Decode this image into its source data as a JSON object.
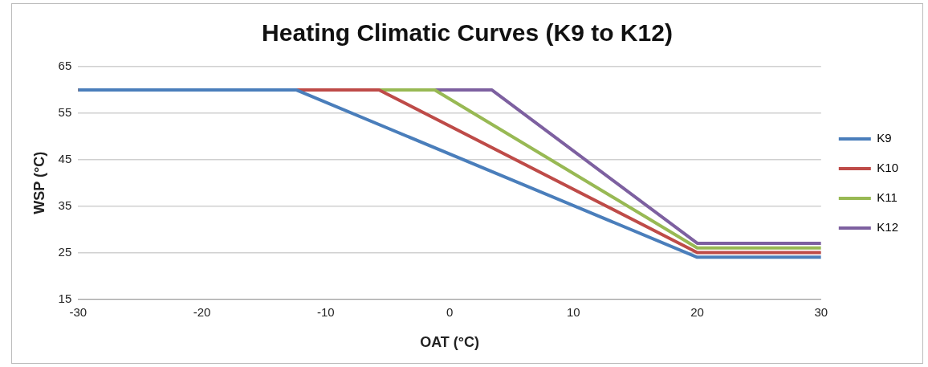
{
  "chart_data": {
    "type": "line",
    "title": "Heating Climatic Curves (K9 to K12)",
    "xlabel": "OAT (°C)",
    "ylabel": "WSP (°C)",
    "xlim": [
      -30,
      30
    ],
    "xticks": [
      -30,
      -20,
      -10,
      0,
      10,
      20,
      30
    ],
    "ylim": [
      15,
      65
    ],
    "yticks": [
      15,
      25,
      35,
      45,
      55,
      65
    ],
    "grid": "y",
    "legend": "right",
    "marker": "none",
    "line_style": "solid",
    "series": [
      {
        "name": "K9",
        "color": "#4a7ebb",
        "x": [
          -30,
          -12.4,
          20,
          30
        ],
        "values": [
          60,
          60,
          24,
          24
        ]
      },
      {
        "name": "K10",
        "color": "#be4b48",
        "x": [
          -30,
          -5.7,
          20,
          30
        ],
        "values": [
          60,
          60,
          25,
          25
        ]
      },
      {
        "name": "K11",
        "color": "#98b954",
        "x": [
          -30,
          -1.2,
          20,
          30
        ],
        "values": [
          60,
          60,
          26,
          26
        ]
      },
      {
        "name": "K12",
        "color": "#7d60a0",
        "x": [
          -30,
          3.4,
          20,
          30
        ],
        "values": [
          60,
          60,
          27,
          27
        ]
      }
    ]
  }
}
